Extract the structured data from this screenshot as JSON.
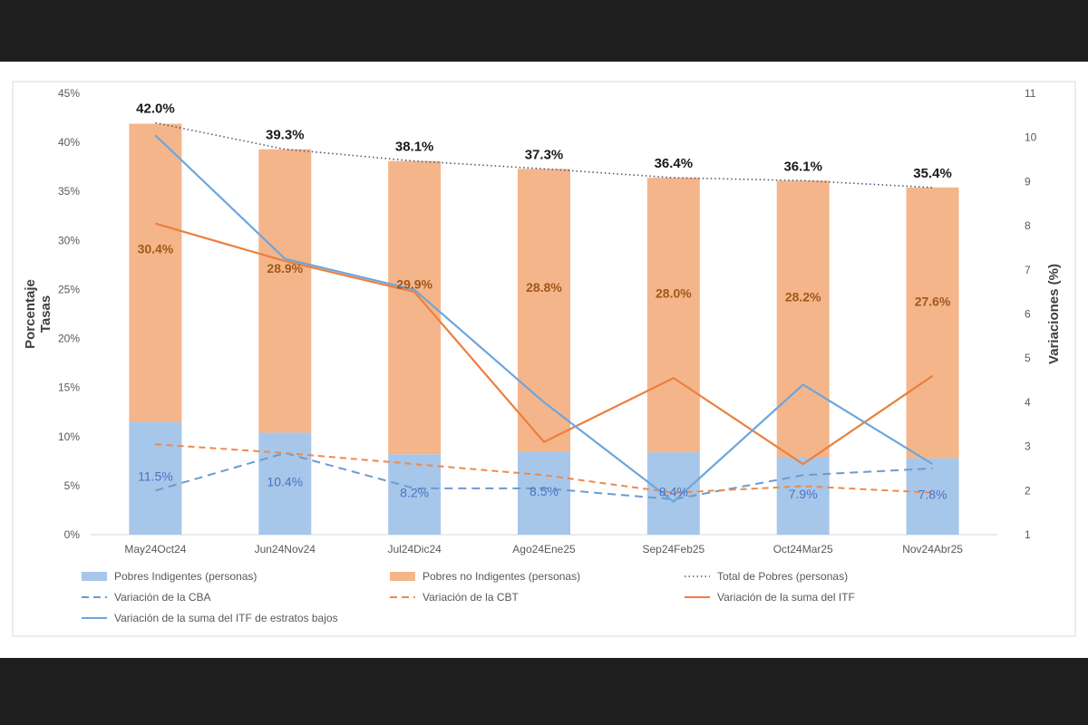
{
  "chart_data": {
    "type": "bar",
    "stacked": true,
    "categories": [
      "May24Oct24",
      "Jun24Nov24",
      "Jul24Dic24",
      "Ago24Ene25",
      "Sep24Feb25",
      "Oct24Mar25",
      "Nov24Abr25"
    ],
    "title": "",
    "xlabel": "",
    "ylabel": "Porcentaje Tasas",
    "y2label": "Variaciones (%)",
    "ylim": [
      0,
      45
    ],
    "y2lim": [
      1,
      11
    ],
    "yticks": [
      "0%",
      "5%",
      "10%",
      "15%",
      "20%",
      "25%",
      "30%",
      "35%",
      "40%",
      "45%"
    ],
    "y2ticks": [
      "1",
      "2",
      "3",
      "4",
      "5",
      "6",
      "7",
      "8",
      "9",
      "10",
      "11"
    ],
    "grid": false,
    "legend_position": "bottom",
    "colors": {
      "indigentes": "#a7c7ea",
      "no_indigentes": "#f5b58a",
      "total": "#4a5a7c",
      "cba": "#6a9bd1",
      "cbt": "#ed8a4a",
      "itf": "#ec7f3f",
      "itf_bajos": "#6ca6dc",
      "label_blue": "#4a72c4",
      "label_orange": "#a0581b"
    },
    "series": [
      {
        "key": "indigentes",
        "name": "Pobres Indigentes (personas)",
        "kind": "bar",
        "axis": "left",
        "values": [
          11.5,
          10.4,
          8.2,
          8.5,
          8.4,
          7.9,
          7.8
        ],
        "labels": [
          "11.5%",
          "10.4%",
          "8.2%",
          "8.5%",
          "8.4%",
          "7.9%",
          "7.8%"
        ]
      },
      {
        "key": "no_indigentes",
        "name": "Pobres no Indigentes (personas)",
        "kind": "bar",
        "axis": "left",
        "values": [
          30.4,
          28.9,
          29.9,
          28.8,
          28.0,
          28.2,
          27.6
        ],
        "labels": [
          "30.4%",
          "28.9%",
          "29.9%",
          "28.8%",
          "28.0%",
          "28.2%",
          "27.6%"
        ]
      },
      {
        "key": "total",
        "name": "Total de Pobres (personas)",
        "kind": "dotted",
        "axis": "left",
        "values": [
          42.0,
          39.3,
          38.1,
          37.3,
          36.4,
          36.1,
          35.4
        ],
        "labels": [
          "42.0%",
          "39.3%",
          "38.1%",
          "37.3%",
          "36.4%",
          "36.1%",
          "35.4%"
        ]
      },
      {
        "key": "cba",
        "name": "Variación de la CBA",
        "kind": "dashed",
        "axis": "right",
        "values": [
          2.0,
          2.85,
          2.05,
          2.05,
          1.8,
          2.35,
          2.5
        ]
      },
      {
        "key": "cbt",
        "name": "Variación de la CBT",
        "kind": "dashed",
        "axis": "right",
        "values": [
          3.05,
          2.85,
          2.6,
          2.35,
          1.95,
          2.1,
          1.95
        ]
      },
      {
        "key": "itf",
        "name": "Variación de la suma del ITF",
        "kind": "line",
        "axis": "right",
        "values": [
          8.05,
          7.2,
          6.5,
          3.1,
          4.55,
          2.6,
          4.6
        ]
      },
      {
        "key": "itf_bajos",
        "name": "Variación de la suma del ITF de estratos bajos",
        "kind": "line",
        "axis": "right",
        "values": [
          10.05,
          7.25,
          6.55,
          4.0,
          1.75,
          4.4,
          2.6
        ]
      }
    ]
  }
}
